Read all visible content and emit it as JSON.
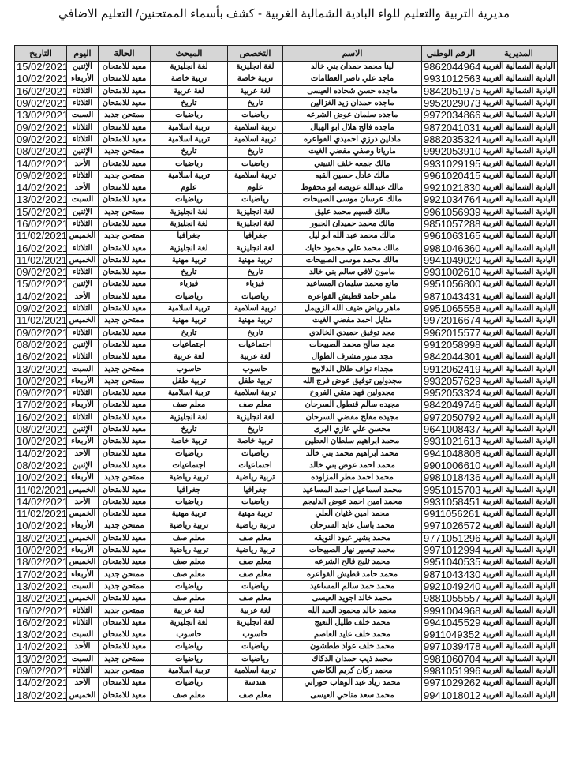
{
  "title": "مديرية التربية والتعليم للواء البادية الشمالية الغربية - كشف بأسماء الممتحنين/ التعليم الاضافي",
  "table": {
    "headers": [
      "المديرية",
      "الرقم الوطني",
      "الاسم",
      "التخصص",
      "المبحث",
      "الحالة",
      "اليوم",
      "التاريخ"
    ],
    "rows": [
      [
        "البادية الشمالية الغربية",
        "9862044964",
        "لينا محمد حمدان بني خالد",
        "لغة انجليزية",
        "لغة انجليزية",
        "معيد للامتحان",
        "الإثنين",
        "15/02/2021"
      ],
      [
        "البادية الشمالية الغربية",
        "9931012563",
        "ماجد علي ناصر العظامات",
        "تربية خاصة",
        "تربية خاصة",
        "معيد للامتحان",
        "الأربعاء",
        "10/02/2021"
      ],
      [
        "البادية الشمالية الغربية",
        "9842051975",
        "ماجده حسن شحاده العيسى",
        "لغة عربية",
        "لغة عربية",
        "معيد للامتحان",
        "الثلاثاء",
        "16/02/2021"
      ],
      [
        "البادية الشمالية الغربية",
        "9952029073",
        "ماجده حمدان زيد الغزالين",
        "تاريخ",
        "تاريخ",
        "معيد للامتحان",
        "الثلاثاء",
        "09/02/2021"
      ],
      [
        "البادية الشمالية الغربية",
        "9972034866",
        "ماجده سلمان عوض الشرعه",
        "رياضيات",
        "رياضيات",
        "ممتحن جديد",
        "السبت",
        "13/02/2021"
      ],
      [
        "البادية الشمالية الغربية",
        "9872041031",
        "ماجده فالح هلال ابو الهيال",
        "تربية اسلامية",
        "تربية اسلامية",
        "معيد للامتحان",
        "الثلاثاء",
        "09/02/2021"
      ],
      [
        "البادية الشمالية الغربية",
        "9882035324",
        "مادلين درزي احميدي الفواعره",
        "تربية اسلامية",
        "تربية اسلامية",
        "معيد للامتحان",
        "الثلاثاء",
        "09/02/2021"
      ],
      [
        "البادية الشمالية الغربية",
        "9992053910",
        "ماريانا وصفي مفضي الغيث",
        "تاريخ",
        "تاريخ",
        "ممتحن جديد",
        "الإثنين",
        "08/02/2021"
      ],
      [
        "البادية الشمالية الغربية",
        "9931029195",
        "مالك جمعه خلف النبيني",
        "رياضيات",
        "رياضيات",
        "معيد للامتحان",
        "الأحد",
        "14/02/2021"
      ],
      [
        "البادية الشمالية الغربية",
        "9961020415",
        "مالك عادل حسين القبه",
        "تربية اسلامية",
        "تربية اسلامية",
        "ممتحن جديد",
        "الثلاثاء",
        "09/02/2021"
      ],
      [
        "البادية الشمالية الغربية",
        "9921021830",
        "مالك عبدالله عويضه ابو محفوظ",
        "علوم",
        "علوم",
        "معيد للامتحان",
        "الأحد",
        "14/02/2021"
      ],
      [
        "البادية الشمالية الغربية",
        "9921034764",
        "مالك عرسان موسى الصبيحات",
        "رياضيات",
        "رياضيات",
        "معيد للامتحان",
        "السبت",
        "13/02/2021"
      ],
      [
        "البادية الشمالية الغربية",
        "9961056939",
        "مالك قسيم محمد عليق",
        "لغة انجليزية",
        "لغة انجليزية",
        "ممتحن جديد",
        "الإثنين",
        "15/02/2021"
      ],
      [
        "البادية الشمالية الغربية",
        "9851057288",
        "مالك محمد حميدان الجبور",
        "لغة انجليزية",
        "لغة انجليزية",
        "معيد للامتحان",
        "الثلاثاء",
        "16/02/2021"
      ],
      [
        "البادية الشمالية الغربية",
        "9961063165",
        "مالك محمد عبد الله ابو ليل",
        "جغرافيا",
        "جغرافيا",
        "ممتحن جديد",
        "الخميس",
        "11/02/2021"
      ],
      [
        "البادية الشمالية الغربية",
        "9981046360",
        "مالك محمد علي محمود حايك",
        "لغة انجليزية",
        "لغة انجليزية",
        "معيد للامتحان",
        "الثلاثاء",
        "16/02/2021"
      ],
      [
        "البادية الشمالية الغربية",
        "9941049020",
        "مالك محمد موسى الصبيحات",
        "تربية مهنية",
        "تربية مهنية",
        "معيد للامتحان",
        "الخميس",
        "11/02/2021"
      ],
      [
        "البادية الشمالية الغربية",
        "9931002610",
        "مامون لافي سالم بني خالد",
        "تاريخ",
        "تاريخ",
        "معيد للامتحان",
        "الثلاثاء",
        "09/02/2021"
      ],
      [
        "البادية الشمالية الغربية",
        "9951056800",
        "مانع محمد سليمان المساعيد",
        "فيزياء",
        "فيزياء",
        "معيد للامتحان",
        "الإثنين",
        "15/02/2021"
      ],
      [
        "البادية الشمالية الغربية",
        "9871043431",
        "ماهر حامد قطيش الفواعره",
        "رياضيات",
        "رياضيات",
        "معيد للامتحان",
        "الأحد",
        "14/02/2021"
      ],
      [
        "البادية الشمالية الغربية",
        "9951065558",
        "ماهر رياض ضيف الله الزويمل",
        "تربية اسلامية",
        "تربية اسلامية",
        "معيد للامتحان",
        "الثلاثاء",
        "09/02/2021"
      ],
      [
        "البادية الشمالية الغربية",
        "9972016674",
        "مثايل احمد مفضي الغيث",
        "تربية مهنية",
        "تربية مهنية",
        "ممتحن جديد",
        "الخميس",
        "11/02/2021"
      ],
      [
        "البادية الشمالية الغربية",
        "9962015577",
        "مجد توفيق حميدي الخالدي",
        "تاريخ",
        "تاريخ",
        "معيد للامتحان",
        "الثلاثاء",
        "09/02/2021"
      ],
      [
        "البادية الشمالية الغربية",
        "9912058998",
        "مجد صالح محمد الصبيحات",
        "اجتماعيات",
        "اجتماعيات",
        "معيد للامتحان",
        "الإثنين",
        "08/02/2021"
      ],
      [
        "البادية الشمالية الغربية",
        "9842044301",
        "مجد منور مشرف الطوال",
        "لغة عربية",
        "لغة عربية",
        "معيد للامتحان",
        "الثلاثاء",
        "16/02/2021"
      ],
      [
        "البادية الشمالية الغربية",
        "9912062419",
        "مجداء نواف طلال الدلابيح",
        "حاسوب",
        "حاسوب",
        "ممتحن جديد",
        "السبت",
        "13/02/2021"
      ],
      [
        "البادية الشمالية الغربية",
        "9932057629",
        "مجدولين توفيق عوض فرج الله",
        "تربية طفل",
        "تربية طفل",
        "ممتحن جديد",
        "الأربعاء",
        "10/02/2021"
      ],
      [
        "البادية الشمالية الغربية",
        "9952053324",
        "مجدولين فهد متقي الفروخ",
        "تربية اسلامية",
        "تربية اسلامية",
        "معيد للامتحان",
        "الثلاثاء",
        "09/02/2021"
      ],
      [
        "البادية الشمالية الغربية",
        "9842049746",
        "مجيده سالم قنطول السرحان",
        "معلم صف",
        "معلم صف",
        "معيد للامتحان",
        "الأربعاء",
        "17/02/2021"
      ],
      [
        "البادية الشمالية الغربية",
        "9972050792",
        "مجيده مفلح مفضي السرحان",
        "لغة انجليزية",
        "لغة انجليزية",
        "معيد للامتحان",
        "الثلاثاء",
        "16/02/2021"
      ],
      [
        "البادية الشمالية الغربية",
        "9641008437",
        "محسن علي غازي البرى",
        "تاريخ",
        "تاريخ",
        "معيد للامتحان",
        "الإثنين",
        "08/02/2021"
      ],
      [
        "البادية الشمالية الغربية",
        "9931021613",
        "محمد ابراهيم سلطان العطين",
        "تربية خاصة",
        "تربية خاصة",
        "معيد للامتحان",
        "الأربعاء",
        "10/02/2021"
      ],
      [
        "البادية الشمالية الغربية",
        "9941048806",
        "محمد ابراهيم محمد بني خالد",
        "رياضيات",
        "رياضيات",
        "معيد للامتحان",
        "الأحد",
        "14/02/2021"
      ],
      [
        "البادية الشمالية الغربية",
        "9901006610",
        "محمد احمد عوض بني خالد",
        "اجتماعيات",
        "اجتماعيات",
        "معيد للامتحان",
        "الإثنين",
        "08/02/2021"
      ],
      [
        "البادية الشمالية الغربية",
        "9981018436",
        "محمد احمد مطر المزاوده",
        "تربية رياضية",
        "تربية رياضية",
        "ممتحن جديد",
        "الأربعاء",
        "10/02/2021"
      ],
      [
        "البادية الشمالية الغربية",
        "9951015703",
        "محمد اسماعيل احمد المساعيد",
        "جغرافيا",
        "جغرافيا",
        "معيد للامتحان",
        "الخميس",
        "11/02/2021"
      ],
      [
        "البادية الشمالية الغربية",
        "9931058451",
        "محمد امين احمد عوض الدليجم",
        "رياضيات",
        "رياضيات",
        "معيد للامتحان",
        "الأحد",
        "14/02/2021"
      ],
      [
        "البادية الشمالية الغربية",
        "9911056261",
        "محمد امين غثيان العلي",
        "تربية مهنية",
        "تربية مهنية",
        "معيد للامتحان",
        "الخميس",
        "11/02/2021"
      ],
      [
        "البادية الشمالية الغربية",
        "9971026572",
        "محمد باسل عايد السرحان",
        "تربية رياضية",
        "تربية رياضية",
        "ممتحن جديد",
        "الأربعاء",
        "10/02/2021"
      ],
      [
        "البادية الشمالية الغربية",
        "9771051296",
        "محمد بشير عبود النويقه",
        "معلم صف",
        "معلم صف",
        "معيد للامتحان",
        "الخميس",
        "18/02/2021"
      ],
      [
        "البادية الشمالية الغربية",
        "9971012994",
        "محمد تيسير نهار الصبيحات",
        "تربية رياضية",
        "تربية رياضية",
        "معيد للامتحان",
        "الأربعاء",
        "10/02/2021"
      ],
      [
        "البادية الشمالية الغربية",
        "9951040535",
        "محمد ثليج فالح الشرعه",
        "معلم صف",
        "معلم صف",
        "معيد للامتحان",
        "الخميس",
        "18/02/2021"
      ],
      [
        "البادية الشمالية الغربية",
        "9871043430",
        "محمد حامد قطيش الفواعره",
        "معلم صف",
        "معلم صف",
        "ممتحن جديد",
        "الأربعاء",
        "17/02/2021"
      ],
      [
        "البادية الشمالية الغربية",
        "9921049240",
        "محمد حمد سالم المساعيد",
        "رياضيات",
        "رياضيات",
        "ممتحن جديد",
        "السبت",
        "13/02/2021"
      ],
      [
        "البادية الشمالية الغربية",
        "9881055557",
        "محمد خالد اجويد العيسى",
        "معلم صف",
        "معلم صف",
        "معيد للامتحان",
        "الخميس",
        "18/02/2021"
      ],
      [
        "البادية الشمالية الغربية",
        "9991004968",
        "محمد خالد محمود العبد الله",
        "لغة عربية",
        "لغة عربية",
        "ممتحن جديد",
        "الثلاثاء",
        "16/02/2021"
      ],
      [
        "البادية الشمالية الغربية",
        "9941045529",
        "محمد خلف ظليل النعيج",
        "لغة انجليزية",
        "لغة انجليزية",
        "معيد للامتحان",
        "الثلاثاء",
        "16/02/2021"
      ],
      [
        "البادية الشمالية الغربية",
        "9911049352",
        "محمد خلف عايد العاصم",
        "حاسوب",
        "حاسوب",
        "معيد للامتحان",
        "السبت",
        "13/02/2021"
      ],
      [
        "البادية الشمالية الغربية",
        "9971039478",
        "محمد خلف عواد ططشون",
        "رياضيات",
        "رياضيات",
        "معيد للامتحان",
        "الأحد",
        "14/02/2021"
      ],
      [
        "البادية الشمالية الغربية",
        "9981060704",
        "محمد ذيب حمدان الدكاك",
        "رياضيات",
        "رياضيات",
        "ممتحن جديد",
        "السبت",
        "13/02/2021"
      ],
      [
        "البادية الشمالية الغربية",
        "9981051996",
        "محمد ركان كريم الكاضي",
        "تربية اسلامية",
        "تربية اسلامية",
        "ممتحن جديد",
        "الثلاثاء",
        "09/02/2021"
      ],
      [
        "البادية الشمالية الغربية",
        "9971029262",
        "محمد زياد عبد الوهاب حوراني",
        "هندسة",
        "رياضيات",
        "معيد للامتحان",
        "الأحد",
        "14/02/2021"
      ],
      [
        "البادية الشمالية الغربية",
        "9941018012",
        "محمد سعد مناحي العيسى",
        "معلم صف",
        "معلم صف",
        "معيد للامتحان",
        "الخميس",
        "18/02/2021"
      ]
    ]
  }
}
